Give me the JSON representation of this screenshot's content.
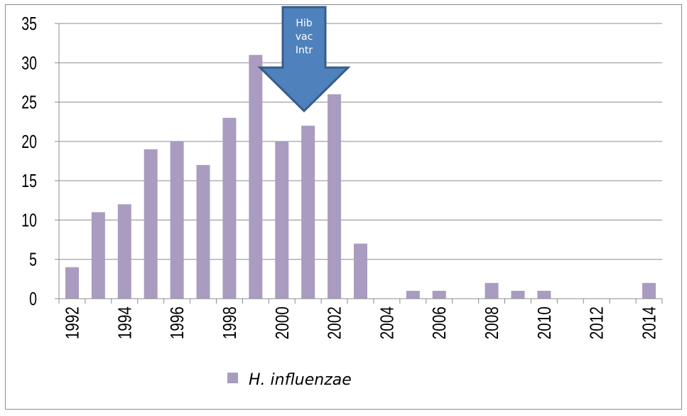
{
  "chart_data": {
    "type": "bar",
    "title": "",
    "xlabel": "",
    "ylabel": "",
    "ylim": [
      0,
      35
    ],
    "yticks": [
      "0",
      "5",
      "10",
      "15",
      "20",
      "25",
      "30",
      "35"
    ],
    "x": [
      1992,
      1993,
      1994,
      1995,
      1996,
      1997,
      1998,
      1999,
      2000,
      2001,
      2002,
      2003,
      2004,
      2005,
      2006,
      2007,
      2008,
      2009,
      2010,
      2011,
      2012,
      2013,
      2014
    ],
    "xtick_labels": [
      "1992",
      "1994",
      "1996",
      "1998",
      "2000",
      "2002",
      "2004",
      "2006",
      "2008",
      "2010",
      "2012",
      "2014"
    ],
    "series": [
      {
        "name": "H. influenzae",
        "color": "#a99cc0",
        "values": [
          4,
          11,
          12,
          19,
          20,
          17,
          23,
          31,
          20,
          22,
          26,
          7,
          0,
          1,
          1,
          0,
          2,
          1,
          1,
          0,
          0,
          0,
          2
        ]
      }
    ],
    "grid": true,
    "legend": "bottom",
    "annotation": {
      "lines": [
        "Hib",
        "vac",
        "Intr"
      ],
      "x": 2001,
      "arrow_color": "#4f81bd",
      "arrow_border": "#385d8a"
    }
  }
}
